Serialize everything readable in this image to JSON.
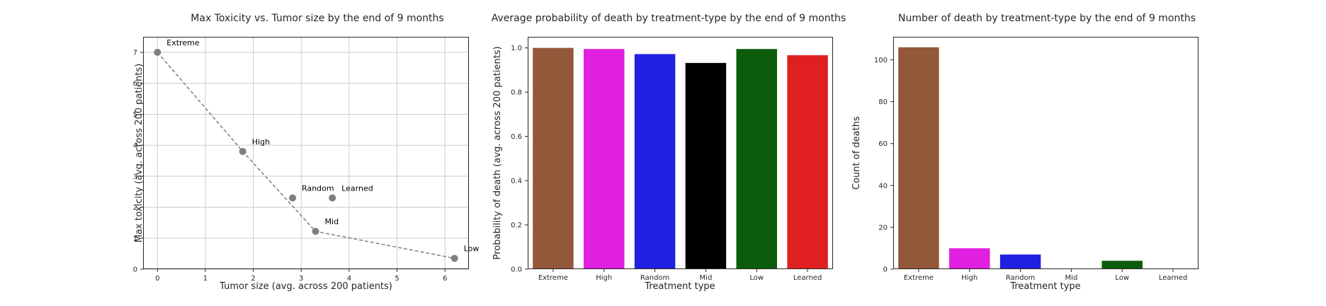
{
  "chart_data": [
    {
      "type": "scatter",
      "title": "Max Toxicity vs. Tumor size by the end of 9 months",
      "xlabel": "Tumor size (avg. across 200 patients)",
      "ylabel": "Max toxicity (avg. across 200 patients)",
      "xlim": [
        -0.3,
        6.5
      ],
      "ylim": [
        0,
        7.5
      ],
      "xticks": [
        "0",
        "1",
        "2",
        "3",
        "4",
        "5",
        "6"
      ],
      "yticks": [
        "0",
        "1",
        "2",
        "3",
        "4",
        "5",
        "6",
        "7"
      ],
      "grid": true,
      "points": [
        {
          "label": "Extreme",
          "x": 0.0,
          "y": 7.0
        },
        {
          "label": "High",
          "x": 1.78,
          "y": 3.8
        },
        {
          "label": "Random",
          "x": 2.82,
          "y": 2.3
        },
        {
          "label": "Learned",
          "x": 3.65,
          "y": 2.3
        },
        {
          "label": "Mid",
          "x": 3.3,
          "y": 1.22
        },
        {
          "label": "Low",
          "x": 6.2,
          "y": 0.35
        }
      ],
      "frontier": [
        "Extreme",
        "High",
        "Mid",
        "Low"
      ],
      "point_color": "#7f7f7f"
    },
    {
      "type": "bar",
      "title": "Average probability of death by treatment-type by the end of 9 months",
      "xlabel": "Treatment type",
      "ylabel": "Probability of death (avg. across 200 patients)",
      "ylim": [
        0,
        1.05
      ],
      "yticks": [
        "0.0",
        "0.2",
        "0.4",
        "0.6",
        "0.8",
        "1.0"
      ],
      "grid": false,
      "categories": [
        "Extreme",
        "High",
        "Random",
        "Mid",
        "Low",
        "Learned"
      ],
      "values": [
        1.0,
        0.995,
        0.972,
        0.932,
        0.995,
        0.967
      ],
      "colors": [
        "#93573a",
        "#e01fe0",
        "#2020e0",
        "#000000",
        "#0b5c0b",
        "#e02020"
      ]
    },
    {
      "type": "bar",
      "title": "Number of death by treatment-type by the end of 9 months",
      "xlabel": "Treatment type",
      "ylabel": "Count of deaths",
      "ylim": [
        0,
        111
      ],
      "yticks": [
        "0",
        "20",
        "40",
        "60",
        "80",
        "100"
      ],
      "grid": false,
      "categories": [
        "Extreme",
        "High",
        "Random",
        "Mid",
        "Low",
        "Learned"
      ],
      "values": [
        106,
        10,
        7,
        0,
        4,
        0
      ],
      "colors": [
        "#93573a",
        "#e01fe0",
        "#2020e0",
        "#000000",
        "#0b5c0b",
        "#e02020"
      ]
    }
  ]
}
